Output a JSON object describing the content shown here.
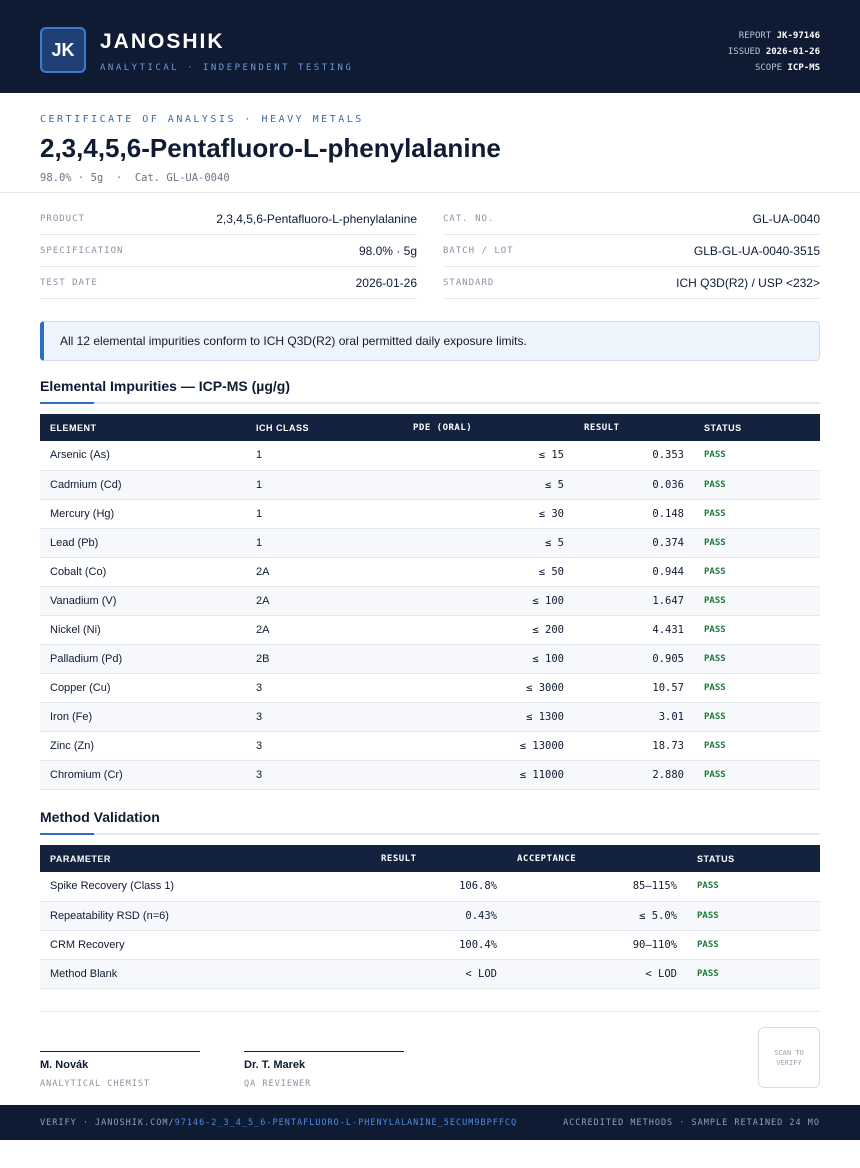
{
  "header": {
    "logo": "JK",
    "brand": "JANOSHIK",
    "tagline": "ANALYTICAL · INDEPENDENT TESTING",
    "meta": [
      {
        "label": "REPORT",
        "value": "JK-97146"
      },
      {
        "label": "ISSUED",
        "value": "2026-01-26"
      },
      {
        "label": "SCOPE",
        "value": "ICP-MS"
      }
    ]
  },
  "certificate": {
    "kicker": "CERTIFICATE OF ANALYSIS · HEAVY METALS",
    "title": "2,3,4,5,6-Pentafluoro-L-phenylalanine",
    "subtitle": "98.0% · 5g  ·  Cat. GL-UA-0040"
  },
  "details": {
    "left": [
      {
        "label": "PRODUCT",
        "value": "2,3,4,5,6-Pentafluoro-L-phenylalanine"
      },
      {
        "label": "SPECIFICATION",
        "value": "98.0% · 5g"
      },
      {
        "label": "TEST DATE",
        "value": "2026-01-26"
      }
    ],
    "right": [
      {
        "label": "CAT. NO.",
        "value": "GL-UA-0040"
      },
      {
        "label": "BATCH / LOT",
        "value": "GLB-GL-UA-0040-3515"
      },
      {
        "label": "STANDARD",
        "value": "ICH Q3D(R2) / USP <232>"
      }
    ]
  },
  "notice": "All 12 elemental impurities conform to ICH Q3D(R2) oral permitted daily exposure limits.",
  "impurities": {
    "heading": "Elemental Impurities — ICP-MS (µg/g)",
    "columns": [
      "ELEMENT",
      "ICH CLASS",
      "PDE (ORAL)",
      "RESULT",
      "STATUS"
    ],
    "rows": [
      [
        "Arsenic (As)",
        "1",
        "≤ 15",
        "0.353",
        "PASS"
      ],
      [
        "Cadmium (Cd)",
        "1",
        "≤ 5",
        "0.036",
        "PASS"
      ],
      [
        "Mercury (Hg)",
        "1",
        "≤ 30",
        "0.148",
        "PASS"
      ],
      [
        "Lead (Pb)",
        "1",
        "≤ 5",
        "0.374",
        "PASS"
      ],
      [
        "Cobalt (Co)",
        "2A",
        "≤ 50",
        "0.944",
        "PASS"
      ],
      [
        "Vanadium (V)",
        "2A",
        "≤ 100",
        "1.647",
        "PASS"
      ],
      [
        "Nickel (Ni)",
        "2A",
        "≤ 200",
        "4.431",
        "PASS"
      ],
      [
        "Palladium (Pd)",
        "2B",
        "≤ 100",
        "0.905",
        "PASS"
      ],
      [
        "Copper (Cu)",
        "3",
        "≤ 3000",
        "10.57",
        "PASS"
      ],
      [
        "Iron (Fe)",
        "3",
        "≤ 1300",
        "3.01",
        "PASS"
      ],
      [
        "Zinc (Zn)",
        "3",
        "≤ 13000",
        "18.73",
        "PASS"
      ],
      [
        "Chromium (Cr)",
        "3",
        "≤ 11000",
        "2.880",
        "PASS"
      ]
    ]
  },
  "validation": {
    "heading": "Method Validation",
    "columns": [
      "PARAMETER",
      "RESULT",
      "ACCEPTANCE",
      "STATUS"
    ],
    "rows": [
      [
        "Spike Recovery (Class 1)",
        "106.8%",
        "85–115%",
        "PASS"
      ],
      [
        "Repeatability RSD (n=6)",
        "0.43%",
        "≤ 5.0%",
        "PASS"
      ],
      [
        "CRM Recovery",
        "100.4%",
        "90–110%",
        "PASS"
      ],
      [
        "Method Blank",
        "< LOD",
        "< LOD",
        "PASS"
      ]
    ]
  },
  "signatures": [
    {
      "name": "M. Novák",
      "role": "ANALYTICAL CHEMIST"
    },
    {
      "name": "Dr. T. Marek",
      "role": "QA REVIEWER"
    }
  ],
  "stamp": "SCAN TO VERIFY",
  "footer": {
    "verify": "VERIFY · JANOSHIK.COM/",
    "link": "97146-2_3_4_5_6-PENTAFLUORO-L-PHENYLALANINE_5ECUM9BPFFCQ",
    "right": "ACCREDITED METHODS · SAMPLE RETAINED 24 MO"
  }
}
